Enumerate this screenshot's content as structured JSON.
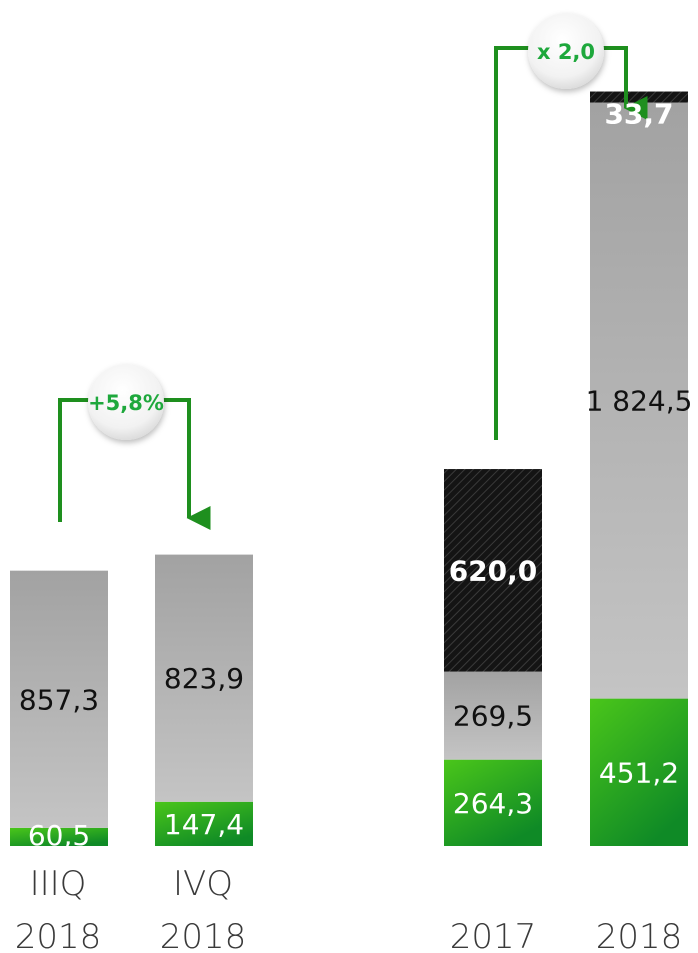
{
  "chart_data": [
    {
      "type": "bar",
      "stacked": true,
      "categories": [
        "IIIQ 2018",
        "IVQ 2018"
      ],
      "series": [
        {
          "values": [
            60.5,
            147.4
          ],
          "labels": [
            "60,5",
            "147,4"
          ]
        },
        {
          "values": [
            857.3,
            823.9
          ],
          "labels": [
            "857,3",
            "823,9"
          ]
        }
      ],
      "growth_annotation": "+5,8%"
    },
    {
      "type": "bar",
      "stacked": true,
      "categories": [
        "2017",
        "2018"
      ],
      "series": [
        {
          "values": [
            264.3,
            451.2
          ],
          "labels": [
            "264,3",
            "451,2"
          ]
        },
        {
          "values": [
            269.5,
            1824.5
          ],
          "labels": [
            "269,5",
            "1 824,5"
          ]
        },
        {
          "values": [
            620.0,
            33.7
          ],
          "labels": [
            "620,0",
            "33,7"
          ]
        }
      ],
      "growth_annotation": "x 2,0"
    }
  ],
  "colors": {
    "green": "#1fa51f",
    "green_light": "#46c21a",
    "gray": "#b3b3b3",
    "gray_top": "#a3a3a3",
    "hatch": "#1e1e1e",
    "arrow": "#1e8f1e",
    "growth_text": "#1ea83c"
  }
}
